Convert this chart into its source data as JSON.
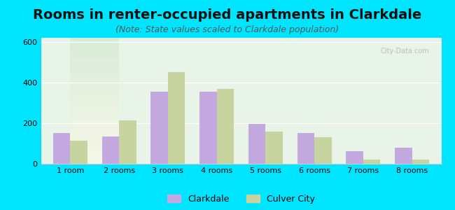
{
  "title": "Rooms in renter-occupied apartments in Clarkdale",
  "subtitle": "(Note: State values scaled to Clarkdale population)",
  "categories": [
    "1 room",
    "2 rooms",
    "3 rooms",
    "4 rooms",
    "5 rooms",
    "6 rooms",
    "7 rooms",
    "8 rooms"
  ],
  "clarkdale": [
    150,
    135,
    355,
    355,
    198,
    150,
    62,
    80
  ],
  "culver_city": [
    113,
    215,
    450,
    370,
    158,
    130,
    20,
    20
  ],
  "clarkdale_color": "#c4a8e0",
  "culver_city_color": "#c8d4a0",
  "ylim": [
    0,
    620
  ],
  "yticks": [
    0,
    200,
    400,
    600
  ],
  "background_outer": "#00e5ff",
  "background_inner_top": "#e8f4e8",
  "background_inner_bottom": "#f5f5e8",
  "bar_width": 0.35,
  "title_fontsize": 14,
  "subtitle_fontsize": 9,
  "tick_fontsize": 8,
  "legend_fontsize": 9
}
